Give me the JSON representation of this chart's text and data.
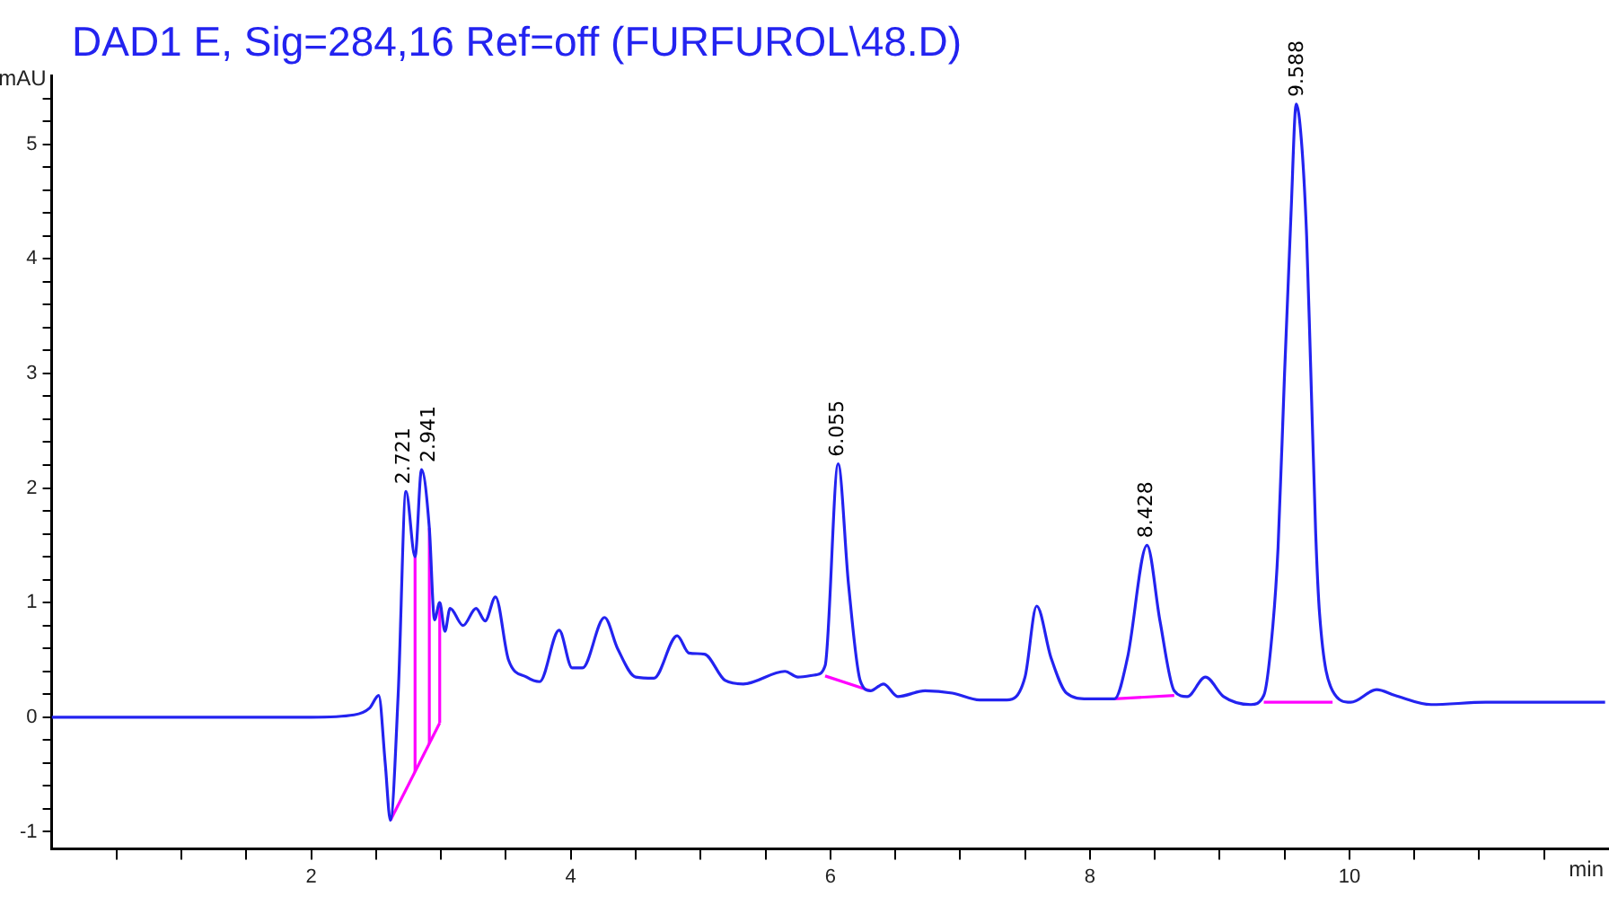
{
  "chart_data": {
    "type": "line",
    "title": "DAD1 E, Sig=284,16 Ref=off (FURFUROL\\48.D)",
    "xlabel": "min",
    "ylabel": "mAU",
    "xlim": [
      0,
      12
    ],
    "ylim": [
      -1.15,
      5.6
    ],
    "xticks": [
      {
        "value": 0.5,
        "label": null
      },
      {
        "value": 1,
        "label": null
      },
      {
        "value": 1.5,
        "label": null
      },
      2,
      {
        "value": 2.5,
        "label": null
      },
      {
        "value": 3,
        "label": null
      },
      {
        "value": 3.5,
        "label": null
      },
      4,
      {
        "value": 4.5,
        "label": null
      },
      {
        "value": 5,
        "label": null
      },
      {
        "value": 5.5,
        "label": null
      },
      6,
      {
        "value": 6.5,
        "label": null
      },
      {
        "value": 7,
        "label": null
      },
      {
        "value": 7.5,
        "label": null
      },
      8,
      {
        "value": 8.5,
        "label": null
      },
      {
        "value": 9,
        "label": null
      },
      {
        "value": 9.5,
        "label": null
      },
      10,
      {
        "value": 10.5,
        "label": null
      },
      {
        "value": 11,
        "label": null
      },
      {
        "value": 11.5,
        "label": null
      }
    ],
    "yticks": [
      -1,
      {
        "value": -0.8,
        "label": null
      },
      {
        "value": -0.6,
        "label": null
      },
      {
        "value": -0.4,
        "label": null
      },
      {
        "value": -0.2,
        "label": null
      },
      0,
      {
        "value": 0.2,
        "label": null
      },
      {
        "value": 0.4,
        "label": null
      },
      {
        "value": 0.6,
        "label": null
      },
      {
        "value": 0.8,
        "label": null
      },
      1,
      {
        "value": 1.2,
        "label": null
      },
      {
        "value": 1.4,
        "label": null
      },
      {
        "value": 1.6,
        "label": null
      },
      {
        "value": 1.8,
        "label": null
      },
      2,
      {
        "value": 2.2,
        "label": null
      },
      {
        "value": 2.4,
        "label": null
      },
      {
        "value": 2.6,
        "label": null
      },
      {
        "value": 2.8,
        "label": null
      },
      3,
      {
        "value": 3.2,
        "label": null
      },
      {
        "value": 3.4,
        "label": null
      },
      {
        "value": 3.6,
        "label": null
      },
      {
        "value": 3.8,
        "label": null
      },
      4,
      {
        "value": 4.2,
        "label": null
      },
      {
        "value": 4.4,
        "label": null
      },
      {
        "value": 4.6,
        "label": null
      },
      {
        "value": 4.8,
        "label": null
      },
      5,
      {
        "value": 5.2,
        "label": null
      },
      {
        "value": 5.4,
        "label": null
      }
    ],
    "grid": false,
    "legend": false,
    "marker": "none",
    "line_style": "solid",
    "series": [
      {
        "color": "#2323f0",
        "x": [
          0,
          1,
          2,
          2.33,
          2.45,
          2.52,
          2.57,
          2.61,
          2.67,
          2.73,
          2.8,
          2.85,
          2.91,
          2.95,
          2.99,
          3.03,
          3.07,
          3.17,
          3.27,
          3.34,
          3.42,
          3.52,
          3.66,
          3.76,
          3.91,
          4.01,
          4.09,
          4.26,
          4.36,
          4.5,
          4.64,
          4.82,
          4.91,
          5.03,
          5.19,
          5.33,
          5.65,
          5.75,
          5.89,
          5.96,
          6.06,
          6.14,
          6.23,
          6.31,
          6.41,
          6.52,
          6.73,
          6.94,
          7.15,
          7.36,
          7.5,
          7.59,
          7.7,
          7.82,
          7.98,
          8.19,
          8.29,
          8.44,
          8.54,
          8.65,
          8.75,
          8.89,
          9.03,
          9.24,
          9.34,
          9.41,
          9.45,
          9.5,
          9.55,
          9.59,
          9.63,
          9.67,
          9.7,
          9.74,
          9.77,
          9.87,
          10.01,
          10.21,
          10.35,
          10.63,
          11.05,
          11.47,
          11.97
        ],
        "values": [
          0,
          0,
          0,
          0.02,
          0.08,
          0.19,
          -0.4,
          -0.9,
          0.2,
          1.97,
          1.4,
          2.16,
          1.65,
          0.85,
          1.0,
          0.75,
          0.95,
          0.8,
          0.95,
          0.84,
          1.05,
          0.5,
          0.35,
          0.31,
          0.76,
          0.43,
          0.43,
          0.87,
          0.6,
          0.35,
          0.34,
          0.71,
          0.56,
          0.55,
          0.32,
          0.29,
          0.4,
          0.35,
          0.37,
          0.45,
          2.21,
          1.16,
          0.32,
          0.23,
          0.29,
          0.18,
          0.23,
          0.21,
          0.15,
          0.15,
          0.35,
          0.97,
          0.52,
          0.21,
          0.16,
          0.16,
          0.52,
          1.5,
          0.84,
          0.23,
          0.18,
          0.35,
          0.18,
          0.11,
          0.19,
          0.8,
          1.48,
          3.0,
          4.4,
          5.35,
          5.03,
          4.2,
          3.1,
          1.6,
          0.9,
          0.23,
          0.13,
          0.24,
          0.19,
          0.11,
          0.13,
          0.13,
          0.13
        ]
      },
      {
        "color": "#ff00ff",
        "x": [
          2.61,
          2.99
        ],
        "values": [
          -0.9,
          -0.05
        ]
      },
      {
        "color": "#ff00ff",
        "x": [
          2.8,
          2.8
        ],
        "values": [
          -0.48,
          1.4
        ]
      },
      {
        "color": "#ff00ff",
        "x": [
          2.91,
          2.91
        ],
        "values": [
          -0.23,
          1.65
        ]
      },
      {
        "color": "#ff00ff",
        "x": [
          2.99,
          2.99
        ],
        "values": [
          -0.05,
          1.0
        ]
      },
      {
        "color": "#ff00ff",
        "x": [
          5.96,
          6.31
        ],
        "values": [
          0.36,
          0.23
        ]
      },
      {
        "color": "#ff00ff",
        "x": [
          8.19,
          8.65
        ],
        "values": [
          0.16,
          0.19
        ]
      },
      {
        "color": "#ff00ff",
        "x": [
          9.34,
          9.87
        ],
        "values": [
          0.13,
          0.13
        ]
      }
    ],
    "annotations": [
      {
        "text": "2.721",
        "x": 2.72,
        "y": 1.97
      },
      {
        "text": "2.941",
        "x": 2.91,
        "y": 2.16
      },
      {
        "text": "6.055",
        "x": 6.06,
        "y": 2.21
      },
      {
        "text": "8.428",
        "x": 8.44,
        "y": 1.5
      },
      {
        "text": "9.588",
        "x": 9.6,
        "y": 5.35
      }
    ]
  }
}
